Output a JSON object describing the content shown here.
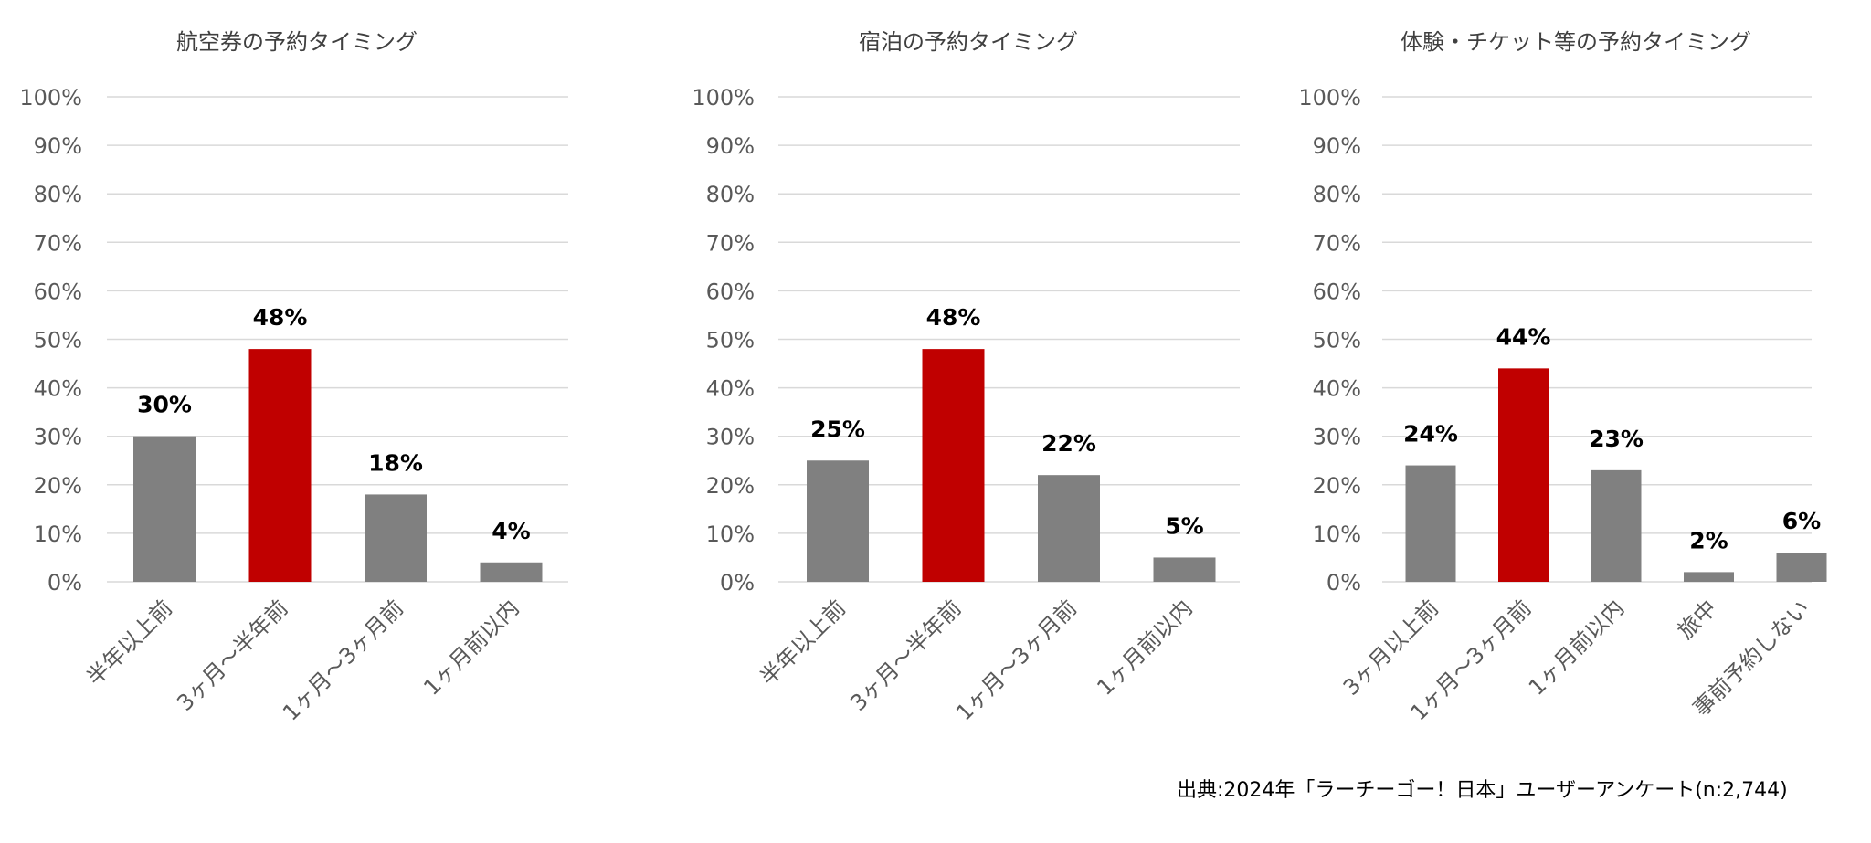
{
  "source_note": "出典:2024年「ラーチーゴー！日本」ユーザーアンケート(n:2,744)",
  "colors": {
    "bar": "#808080",
    "highlight": "#c00000",
    "grid": "#d9d9d9"
  },
  "chart_data": [
    {
      "type": "bar",
      "title": "航空券の予約タイミング",
      "categories": [
        "半年以上前",
        "3ヶ月～半年前",
        "1ヶ月～3ヶ月前",
        "1ヶ月前以内"
      ],
      "values": [
        30,
        48,
        18,
        4
      ],
      "value_labels": [
        "30%",
        "48%",
        "18%",
        "4%"
      ],
      "highlight_index": 1,
      "ylim": [
        0,
        100
      ],
      "yticks": [
        "0%",
        "10%",
        "20%",
        "30%",
        "40%",
        "50%",
        "60%",
        "70%",
        "80%",
        "90%",
        "100%"
      ],
      "grid": true,
      "xlabel": "",
      "ylabel": ""
    },
    {
      "type": "bar",
      "title": "宿泊の予約タイミング",
      "categories": [
        "半年以上前",
        "3ヶ月～半年前",
        "1ヶ月～3ヶ月前",
        "1ヶ月前以内"
      ],
      "values": [
        25,
        48,
        22,
        5
      ],
      "value_labels": [
        "25%",
        "48%",
        "22%",
        "5%"
      ],
      "highlight_index": 1,
      "ylim": [
        0,
        100
      ],
      "yticks": [
        "0%",
        "10%",
        "20%",
        "30%",
        "40%",
        "50%",
        "60%",
        "70%",
        "80%",
        "90%",
        "100%"
      ],
      "grid": true,
      "xlabel": "",
      "ylabel": ""
    },
    {
      "type": "bar",
      "title": "体験・チケット等の予約タイミング",
      "categories": [
        "3ヶ月以上前",
        "1ヶ月～3ヶ月前",
        "1ヶ月前以内",
        "旅中",
        "事前予約しない"
      ],
      "values": [
        24,
        44,
        23,
        2,
        6
      ],
      "value_labels": [
        "24%",
        "44%",
        "23%",
        "2%",
        "6%"
      ],
      "highlight_index": 1,
      "ylim": [
        0,
        100
      ],
      "yticks": [
        "0%",
        "10%",
        "20%",
        "30%",
        "40%",
        "50%",
        "60%",
        "70%",
        "80%",
        "90%",
        "100%"
      ],
      "grid": true,
      "xlabel": "",
      "ylabel": ""
    }
  ]
}
